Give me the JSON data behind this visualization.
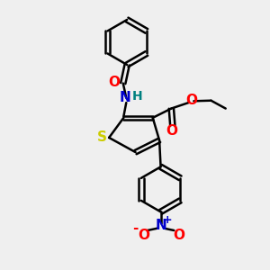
{
  "bg_color": "#efefef",
  "bond_color": "#000000",
  "sulfur_color": "#cccc00",
  "nitrogen_color": "#0000cc",
  "oxygen_color": "#ff0000",
  "h_color": "#008080",
  "line_width": 1.8,
  "fig_size": [
    3.0,
    3.0
  ],
  "xlim": [
    0,
    10
  ],
  "ylim": [
    0,
    10
  ]
}
